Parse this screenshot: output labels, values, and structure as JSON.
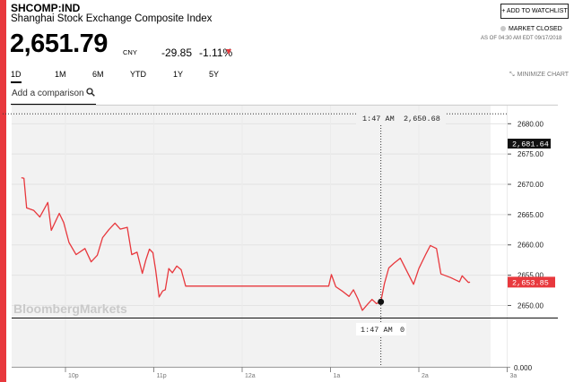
{
  "header": {
    "ticker": "SHCOMP:IND",
    "name": "Shanghai Stock Exchange Composite Index",
    "price": "2,651.79",
    "currency": "CNY",
    "change": "-29.85",
    "change_pct": "-1.11%",
    "watchlist_label": "+ ADD TO WATCHLIST",
    "market_status": "MARKET CLOSED",
    "as_of": "AS OF 04:30 AM EDT 09/17/2018"
  },
  "ranges": [
    "1D",
    "1M",
    "6M",
    "YTD",
    "1Y",
    "5Y"
  ],
  "active_range": "1D",
  "minimize_label": "MINIMIZE CHART",
  "compare_placeholder": "Add a comparison",
  "watermark": "BloombergMarkets",
  "colors": {
    "accent": "#e8383d",
    "line": "#e8383d",
    "fill": "#f2f2f2"
  },
  "chart_data": {
    "type": "line",
    "price_ticks": [
      "2680.00",
      "2675.00",
      "2670.00",
      "2665.00",
      "2660.00",
      "2655.00",
      "2650.00"
    ],
    "volume_tick": "0.000",
    "time_ticks": [
      "10p",
      "11p",
      "12a",
      "1a",
      "2a",
      "3a"
    ],
    "previous_close": "2,681.64",
    "last": "2,653.85",
    "cursor_time": "1:47 AM",
    "cursor_value": "2,650.68",
    "volume_time": "1:47 AM",
    "volume_value": "0",
    "ylim": [
      2648,
      2683
    ],
    "series": [
      {
        "points": [
          [
            21.5,
            2671.1
          ],
          [
            21.53,
            2671.0
          ],
          [
            21.56,
            2666.1
          ],
          [
            21.64,
            2665.7
          ],
          [
            21.71,
            2664.6
          ],
          [
            21.8,
            2667.0
          ],
          [
            21.84,
            2662.4
          ],
          [
            21.93,
            2665.2
          ],
          [
            21.98,
            2663.7
          ],
          [
            22.04,
            2660.4
          ],
          [
            22.12,
            2658.4
          ],
          [
            22.22,
            2659.4
          ],
          [
            22.29,
            2657.2
          ],
          [
            22.36,
            2658.3
          ],
          [
            22.42,
            2661.2
          ],
          [
            22.49,
            2662.5
          ],
          [
            22.56,
            2663.6
          ],
          [
            22.62,
            2662.6
          ],
          [
            22.7,
            2662.9
          ],
          [
            22.75,
            2658.4
          ],
          [
            22.81,
            2658.8
          ],
          [
            22.87,
            2655.3
          ],
          [
            22.91,
            2657.5
          ],
          [
            22.95,
            2659.3
          ],
          [
            22.99,
            2658.7
          ],
          [
            23.02,
            2655.9
          ],
          [
            23.06,
            2651.4
          ],
          [
            23.1,
            2652.4
          ],
          [
            23.13,
            2652.6
          ],
          [
            23.17,
            2656.1
          ],
          [
            23.21,
            2655.4
          ],
          [
            23.26,
            2656.5
          ],
          [
            23.31,
            2655.9
          ],
          [
            23.36,
            2653.2
          ],
          [
            23.41,
            2653.2
          ],
          [
            24.0,
            2653.2
          ],
          [
            24.5,
            2653.2
          ],
          [
            24.98,
            2653.2
          ],
          [
            25.01,
            2655.1
          ],
          [
            25.06,
            2653.1
          ],
          [
            25.13,
            2652.4
          ],
          [
            25.21,
            2651.5
          ],
          [
            25.26,
            2652.6
          ],
          [
            25.31,
            2651.1
          ],
          [
            25.36,
            2649.2
          ],
          [
            25.42,
            2650.2
          ],
          [
            25.47,
            2651.0
          ],
          [
            25.52,
            2650.3
          ],
          [
            25.57,
            2650.6
          ],
          [
            25.61,
            2653.6
          ],
          [
            25.66,
            2656.2
          ],
          [
            25.72,
            2657.0
          ],
          [
            25.79,
            2657.8
          ],
          [
            25.88,
            2655.2
          ],
          [
            25.94,
            2653.5
          ],
          [
            26.0,
            2656.1
          ],
          [
            26.08,
            2658.5
          ],
          [
            26.13,
            2659.9
          ],
          [
            26.2,
            2659.4
          ],
          [
            26.25,
            2655.2
          ],
          [
            26.36,
            2654.6
          ],
          [
            26.46,
            2653.9
          ],
          [
            26.49,
            2654.9
          ],
          [
            26.56,
            2653.8
          ],
          [
            26.58,
            2653.85
          ]
        ]
      }
    ]
  }
}
